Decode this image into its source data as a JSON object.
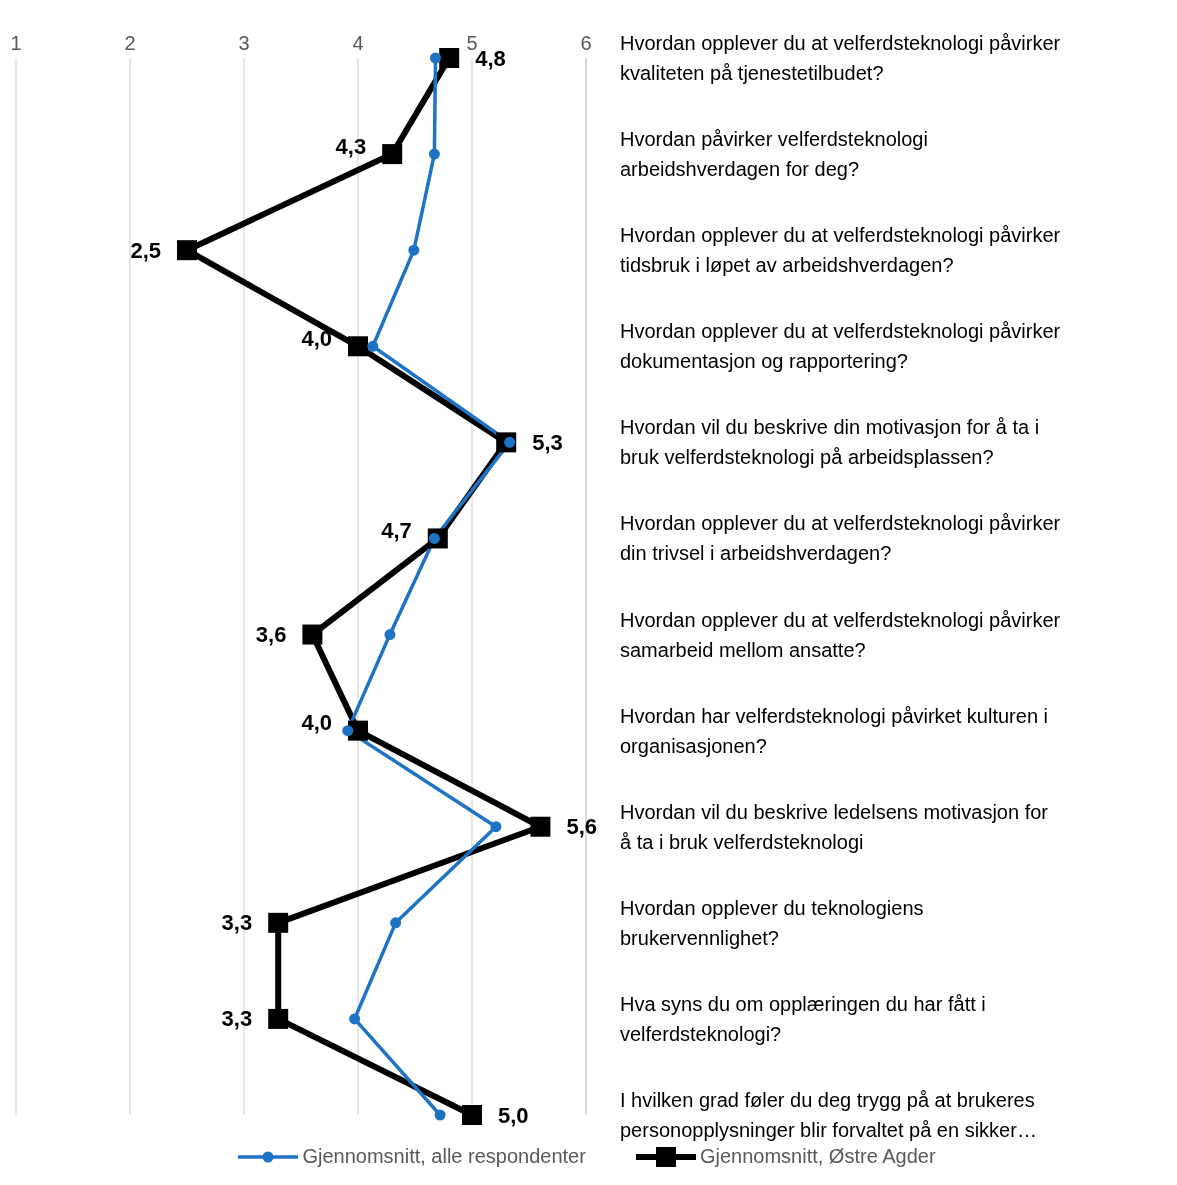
{
  "chart_data": {
    "type": "line",
    "categories": [
      "Hvordan opplever du at velferdsteknologi påvirker kvaliteten på tjenestetilbudet?",
      "Hvordan påvirker velferdsteknologi arbeidshverdagen for deg?",
      "Hvordan opplever du at velferdsteknologi påvirker tidsbruk i løpet av arbeidshverdagen?",
      "Hvordan opplever du at velferdsteknologi påvirker dokumentasjon og rapportering?",
      "Hvordan vil du beskrive din motivasjon for å ta i bruk velferdsteknologi på arbeidsplassen?",
      "Hvordan opplever du at velferdsteknologi påvirker din trivsel i arbeidshverdagen?",
      "Hvordan opplever du at velferdsteknologi påvirker samarbeid mellom ansatte?",
      "Hvordan har velferdsteknologi påvirket kulturen i organisasjonen?",
      "Hvordan vil du beskrive ledelsens motivasjon for å ta i bruk velferdsteknologi",
      "Hvordan opplever du teknologiens brukervennlighet?",
      "Hva syns du om opplæringen du har fått i velferdsteknologi?",
      "I hvilken grad føler du deg trygg på at brukeres personopplysninger blir forvaltet på en sikker…"
    ],
    "orientation": "horizontal",
    "xlim": [
      1,
      6
    ],
    "xticks": [
      1,
      2,
      3,
      4,
      5,
      6
    ],
    "grid": "x",
    "legend": "bottom",
    "line_style": "solid",
    "series": [
      {
        "name": "Gjennomsnitt, alle respondenter",
        "color": "#1f73c4",
        "marker": "circle",
        "values": [
          4.68,
          4.67,
          4.49,
          4.13,
          5.33,
          4.67,
          4.28,
          3.91,
          5.21,
          4.33,
          3.97,
          4.72
        ]
      },
      {
        "name": "Gjennomsnitt, Østre Agder",
        "color": "#000000",
        "marker": "square",
        "values": [
          4.8,
          4.3,
          2.5,
          4.0,
          5.3,
          4.7,
          3.6,
          4.0,
          5.6,
          3.3,
          3.3,
          5.0
        ],
        "value_labels": [
          "4,8",
          "4,3",
          "2,5",
          "4,0",
          "5,3",
          "4,7",
          "3,6",
          "4,0",
          "5,6",
          "3,3",
          "3,3",
          "5,0"
        ]
      }
    ]
  }
}
